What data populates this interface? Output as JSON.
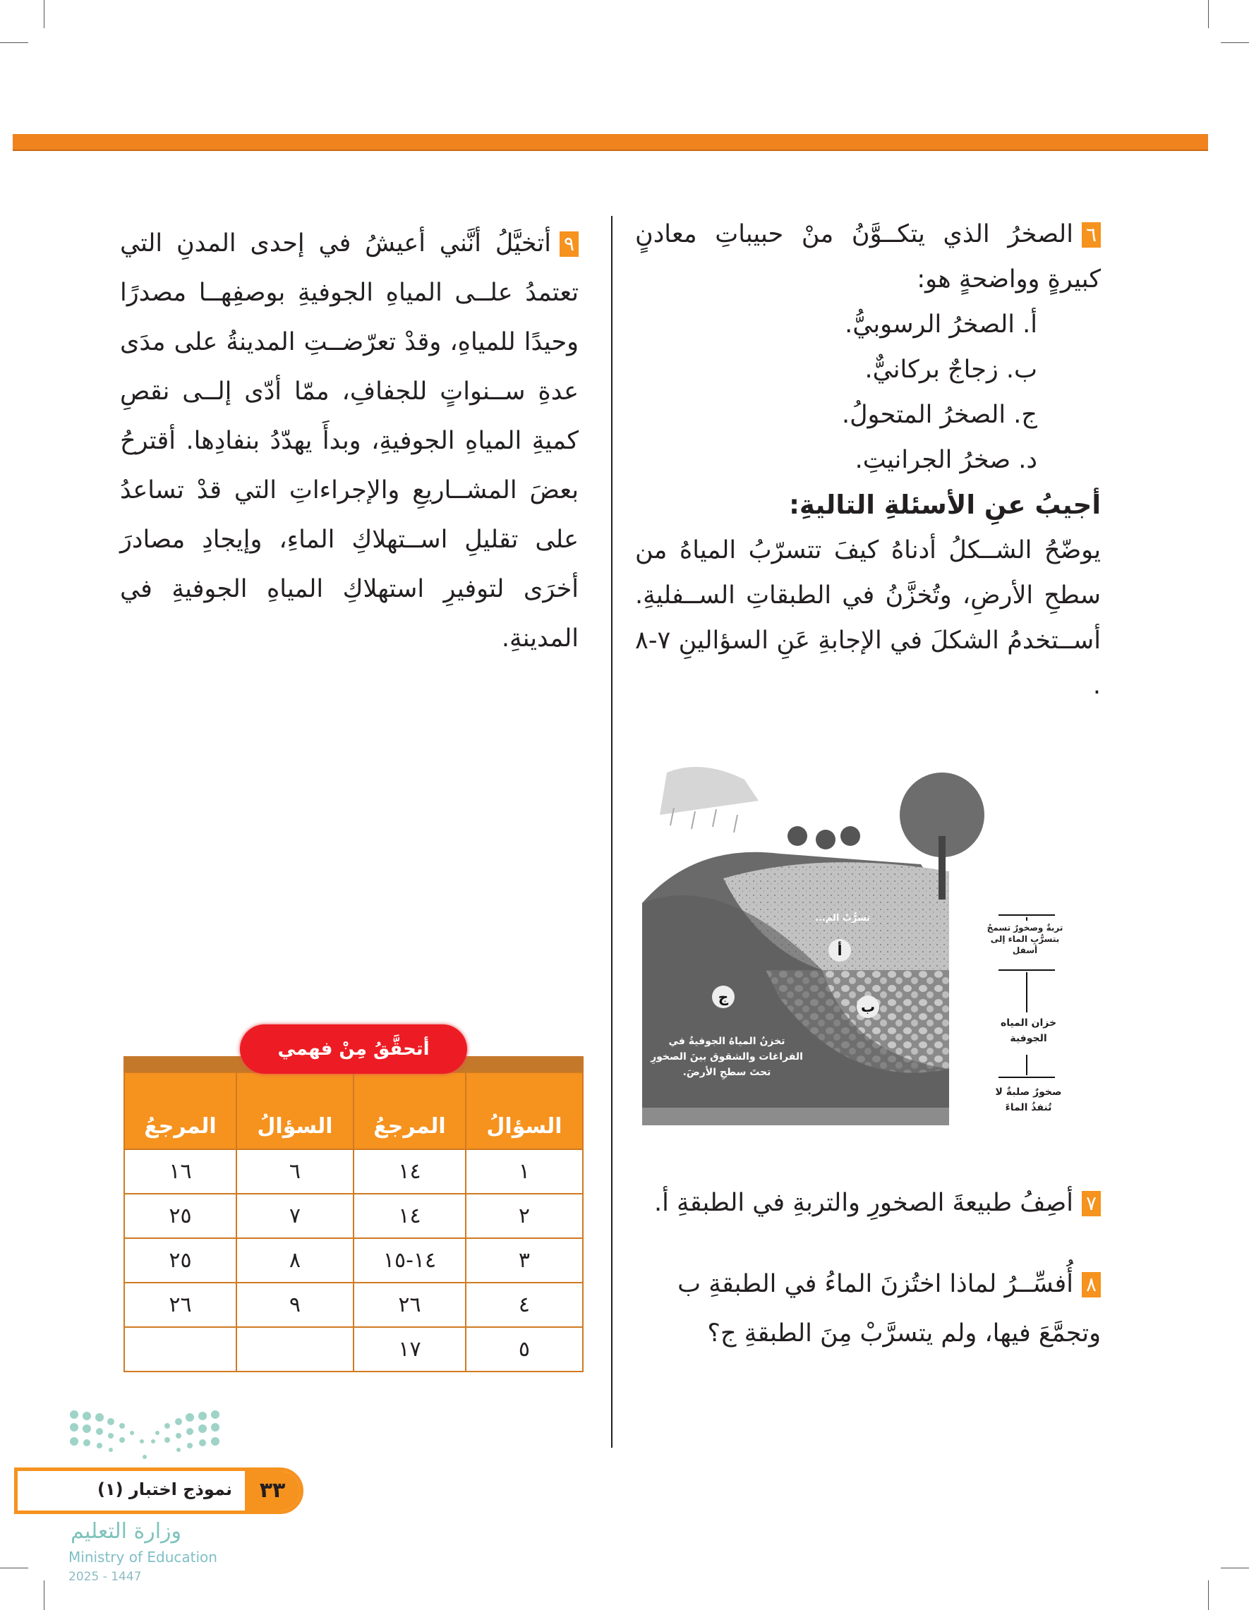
{
  "question6": {
    "number": "٦",
    "text": "الصخرُ الذي يتكــوَّنُ منْ حبيباتِ معادنٍ كبيرةٍ وواضحةٍ هو:",
    "options": [
      "أ.  الصخرُ الرسوبيُّ.",
      "ب.  زجاجٌ بركانيٌّ.",
      "ج.  الصخرُ المتحولُ.",
      "د.  صخرُ الجرانيتِ."
    ]
  },
  "instructions": {
    "heading": "أجيبُ عنِ الأسئلةِ التاليةِ:",
    "text": "يوضّحُ الشــكلُ أدناهُ كيفَ تتسرّبُ المياهُ من سطحِ الأرضِ، وتُخزَّنُ في الطبقاتِ الســفليةِ. أســتخدمُ الشكلَ في الإجابةِ عَنِ السؤالينِ ٧-٨ ."
  },
  "diagram": {
    "labels": {
      "infiltration": "تسرُّبُ الم...",
      "layer_a": "أ",
      "layer_b": "ب",
      "layer_c": "ج",
      "storage_caption": "تخزنُ المياهُ الجوفيةُ في الفراغات والشقوق بينَ الصخورِ تحتَ سطحِ الأرضَ.",
      "permeable": "تربةٌ وصخورٌ تسمحُ بتسرُّبِ الماء إلى أسفل",
      "aquifer": "خزان المياه الجوفية",
      "impermeable": "صخورٌ صلبةٌ لا تُنفذُ الماءَ"
    }
  },
  "question7": {
    "number": "٧",
    "text": "أصِفُ طبيعةَ الصخورِ والتربةِ في الطبقةِ أ."
  },
  "question8": {
    "number": "٨",
    "text": "أُفسِّــرُ لماذا اختُزنَ الماءُ في الطبقةِ ب وتجمَّعَ فيها، ولم يتسرَّبْ مِنَ الطبقةِ ج؟"
  },
  "question9": {
    "number": "٩",
    "text": "أتخيَّلُ أنَّني أعيشُ في إحدى المدنِ التي تعتمدُ علــى المياهِ الجوفيةِ بوصفِهــا مصدرًا وحيدًا للمياهِ، وقدْ تعرّضــتِ المدينةُ على مدَى عدةِ ســنواتٍ للجفافِ، ممّا أدّى إلــى نقصِ كميةِ المياهِ الجوفيةِ، وبدأَ يهدّدُ بنفادِها. أقترحُ بعضَ المشــاريعِ والإجراءاتِ التي قدْ تساعدُ على تقليلِ اســتهلاكِ الماءِ، وإيجادِ مصادرَ أخرَى لتوفيرِ استهلاكِ المياهِ الجوفيةِ في المدينةِ."
  },
  "answer_table": {
    "badge": "أتحقَّقُ مِنْ فهمي",
    "headers": [
      "السؤالُ",
      "المرجعُ",
      "السؤالُ",
      "المرجعُ"
    ],
    "rows": [
      [
        "١",
        "١٤",
        "٦",
        "١٦"
      ],
      [
        "٢",
        "١٤",
        "٧",
        "٢٥"
      ],
      [
        "٣",
        "١٤-١٥",
        "٨",
        "٢٥"
      ],
      [
        "٤",
        "٢٦",
        "٩",
        "٢٦"
      ],
      [
        "٥",
        "١٧",
        "",
        ""
      ]
    ]
  },
  "footer": {
    "page_number": "٣٣",
    "title": "نموذج اختبار (١)",
    "ministry_ar": "وزارة التعليم",
    "ministry_en": "Ministry of Education",
    "year": "2025 - 1447"
  },
  "colors": {
    "accent": "#f6921e",
    "badge": "#ed1c24",
    "bar": "#f0831e"
  }
}
